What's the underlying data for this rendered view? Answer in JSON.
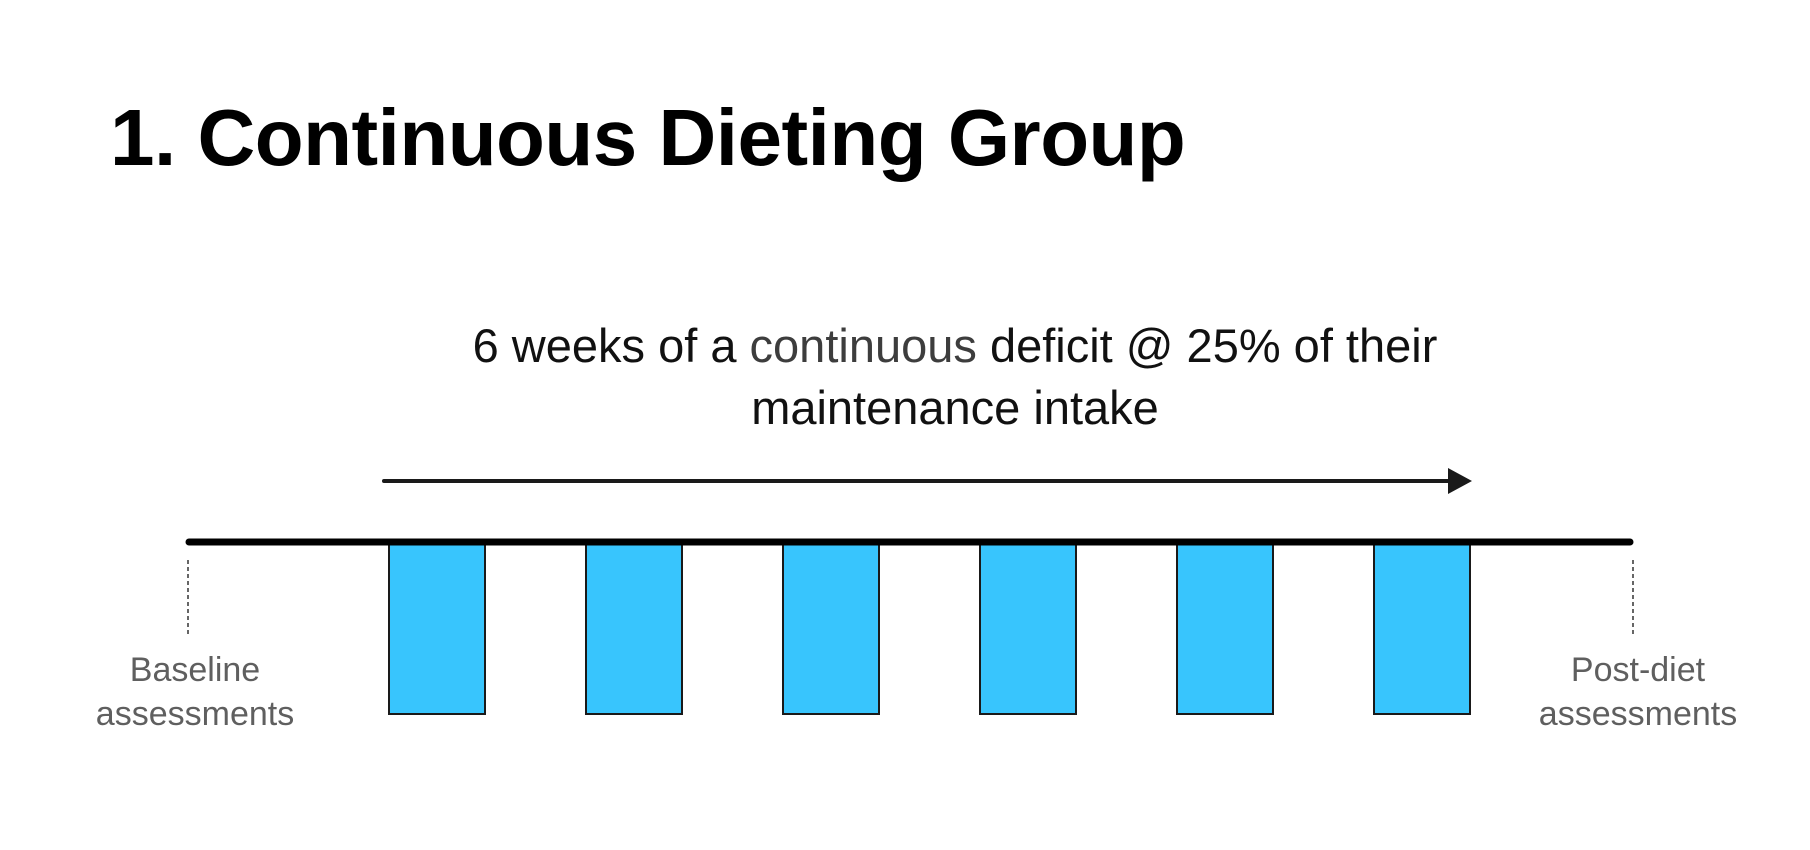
{
  "title": "1. Continuous Dieting Group",
  "caption": {
    "before": "6 weeks of a ",
    "emphasis": "continuous",
    "after": " deficit @ 25% of their",
    "line2": "maintenance intake"
  },
  "timeline": {
    "weeks": 6,
    "start_label": "Baseline assessments",
    "end_label": "Post-diet assessments",
    "diet_block_color": "#38c5fd",
    "outline_color": "#1a1a1a",
    "axis_color": "#000000",
    "marker_color": "#666666",
    "caption_emphasis_color": "#3d3d3d"
  }
}
